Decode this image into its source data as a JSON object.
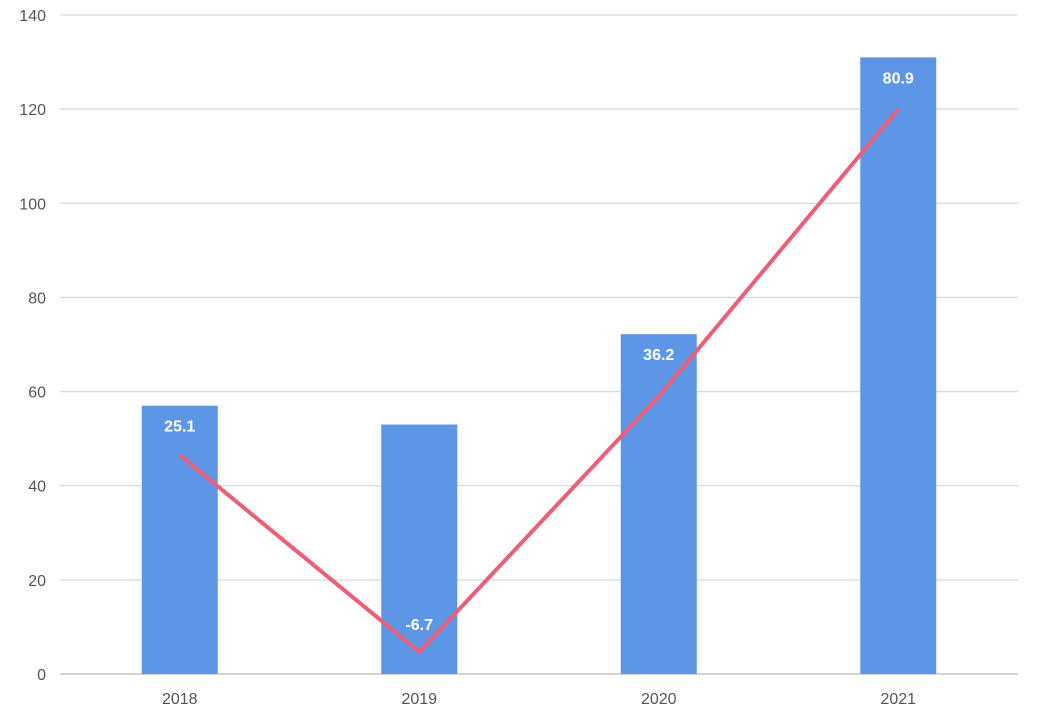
{
  "chart_data": {
    "type": "bar",
    "title": "",
    "xlabel": "",
    "ylabel": "",
    "ylim": [
      0,
      140
    ],
    "yticks": [
      0,
      20,
      40,
      60,
      80,
      100,
      120,
      140
    ],
    "grid": true,
    "categories": [
      "2018",
      "2019",
      "2020",
      "2021"
    ],
    "series": [
      {
        "type": "bar",
        "values": [
          57,
          53,
          72.2,
          131
        ],
        "color": "#5e96e6",
        "data_labels": [
          "25.1",
          "-6.7",
          "36.2",
          "80.9"
        ]
      },
      {
        "type": "line",
        "values": [
          46.5,
          4.7,
          59,
          120
        ],
        "color": "#ec5f78"
      }
    ]
  }
}
